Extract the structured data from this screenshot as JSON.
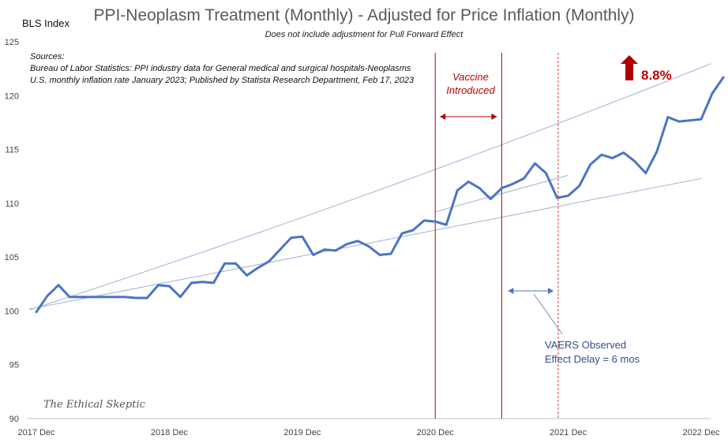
{
  "title": "PPI-Neoplasm Treatment (Monthly) - Adjusted for Price Inflation (Monthly)",
  "subtitle": "Does not include adjustment for Pull Forward Effect",
  "sources": {
    "heading": "Sources:",
    "line1": "Bureau of Labor Statistics: PPI industry data for General medical and surgical hospitals-Neoplasms",
    "line2": "U.S. monthly inflation rate January 2023; Published by Statista Research Department, Feb 17, 2023"
  },
  "annotations": {
    "vaccine_line1": "Vaccine",
    "vaccine_line2": "Introduced",
    "increase_label": "8.8%",
    "vaers_line1": "VAERS Observed",
    "vaers_line2": "Effect Delay = 6 mos",
    "watermark": "The Ethical Skeptic"
  },
  "colors": {
    "series": "#4a74c4",
    "trend": "#9fb2d6",
    "accent_red": "#b00000",
    "arrow_blue": "#4a74c4"
  },
  "chart_data": {
    "type": "line",
    "title": "PPI-Neoplasm Treatment (Monthly) - Adjusted for Price Inflation (Monthly)",
    "ylabel": "BLS Index",
    "xlabel": "",
    "ylim": [
      90,
      125
    ],
    "yticks": [
      90,
      95,
      100,
      105,
      110,
      115,
      120,
      125
    ],
    "x_ticks": [
      "2017 Dec",
      "2018 Dec",
      "2019 Dec",
      "2020 Dec",
      "2021 Dec",
      "2022 Dec"
    ],
    "grid": false,
    "x_start": "2017 Dec",
    "series": [
      {
        "values": [
          99.9,
          101.4,
          102.4,
          101.3,
          101.3,
          101.3,
          101.3,
          101.3,
          101.3,
          101.2,
          101.2,
          102.4,
          102.3,
          101.3,
          102.6,
          102.7,
          102.6,
          104.4,
          104.4,
          103.3,
          104.0,
          104.6,
          105.7,
          106.8,
          106.9,
          105.2,
          105.7,
          105.6,
          106.2,
          106.5,
          106.0,
          105.2,
          105.3,
          107.2,
          107.5,
          108.4,
          108.3,
          108.0,
          111.2,
          112.0,
          111.4,
          110.4,
          111.4,
          111.8,
          112.3,
          113.7,
          112.8,
          110.5,
          110.7,
          111.6,
          113.6,
          114.5,
          114.2,
          114.7,
          113.9,
          112.8,
          114.8,
          118.0,
          117.6,
          117.7,
          117.8,
          120.2,
          121.7
        ]
      }
    ],
    "trendlines": [
      {
        "from": [
          "2017 Dec",
          100.3
        ],
        "to": [
          "2022 Dec",
          112.3
        ]
      },
      {
        "shape": "exponential",
        "from": [
          "2017 Dec",
          100.3
        ],
        "to": [
          "2022 Dec",
          122.6
        ]
      },
      {
        "from": [
          "2020 Dec",
          109.2
        ],
        "to": [
          "2021 Dec",
          112.6
        ]
      }
    ],
    "markers": {
      "vaccine_window": [
        "2020 Dec",
        "2021 Jun"
      ],
      "vaers_effect": "2021 Dec"
    }
  }
}
